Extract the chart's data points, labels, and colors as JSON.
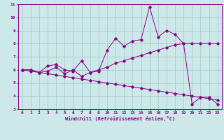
{
  "xlabel": "Windchill (Refroidissement éolien,°C)",
  "background_color": "#cce8e8",
  "line_color": "#880088",
  "grid_color": "#aacccc",
  "xlim": [
    -0.5,
    23.5
  ],
  "ylim": [
    3,
    11
  ],
  "yticks": [
    3,
    4,
    5,
    6,
    7,
    8,
    9,
    10,
    11
  ],
  "xticks": [
    0,
    1,
    2,
    3,
    4,
    5,
    6,
    7,
    8,
    9,
    10,
    11,
    12,
    13,
    14,
    15,
    16,
    17,
    18,
    19,
    20,
    21,
    22,
    23
  ],
  "series1_x": [
    0,
    1,
    2,
    3,
    4,
    5,
    6,
    7,
    8,
    9,
    10,
    11,
    12,
    13,
    14,
    15,
    16,
    17,
    18,
    19,
    20,
    21,
    22,
    23
  ],
  "series1_y": [
    6.0,
    6.0,
    5.8,
    6.3,
    6.4,
    6.0,
    5.9,
    6.7,
    5.8,
    5.9,
    7.5,
    8.4,
    7.8,
    8.2,
    8.3,
    10.8,
    8.5,
    9.0,
    8.7,
    8.0,
    3.4,
    3.9,
    3.9,
    3.4
  ],
  "series2_x": [
    0,
    1,
    2,
    3,
    4,
    5,
    6,
    7,
    8,
    9,
    10,
    11,
    12,
    13,
    14,
    15,
    16,
    17,
    18,
    19,
    20,
    21,
    22,
    23
  ],
  "series2_y": [
    6.0,
    6.0,
    5.8,
    5.9,
    6.2,
    5.7,
    6.0,
    5.5,
    5.8,
    6.0,
    6.2,
    6.5,
    6.7,
    6.9,
    7.1,
    7.3,
    7.5,
    7.7,
    7.9,
    8.0,
    8.0,
    8.0,
    8.0,
    8.0
  ],
  "series3_x": [
    0,
    1,
    2,
    3,
    4,
    5,
    6,
    7,
    8,
    9,
    10,
    11,
    12,
    13,
    14,
    15,
    16,
    17,
    18,
    19,
    20,
    21,
    22,
    23
  ],
  "series3_y": [
    6.0,
    5.9,
    5.8,
    5.7,
    5.6,
    5.5,
    5.4,
    5.3,
    5.2,
    5.1,
    5.0,
    4.9,
    4.8,
    4.7,
    4.6,
    4.5,
    4.4,
    4.3,
    4.2,
    4.1,
    4.0,
    3.9,
    3.8,
    3.7
  ]
}
